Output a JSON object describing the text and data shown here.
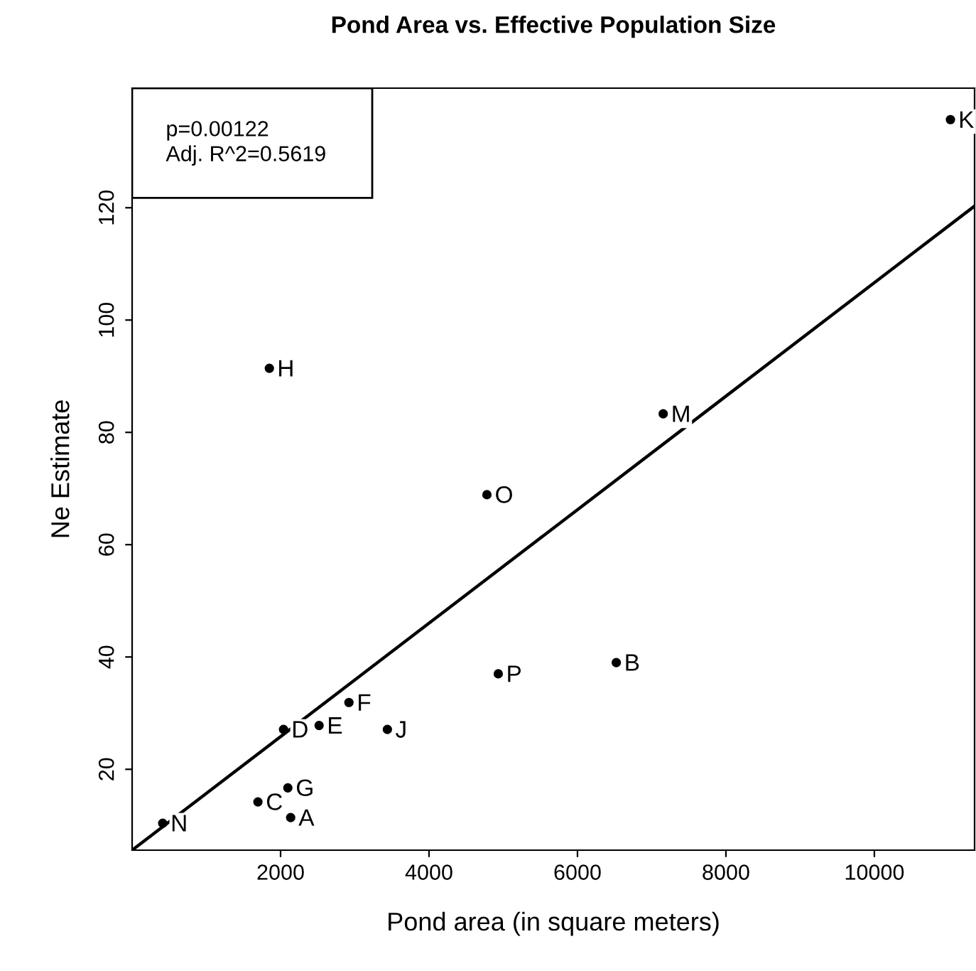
{
  "chart_data": {
    "type": "scatter",
    "title": "Pond Area vs. Effective Population Size",
    "xlabel": "Pond area (in square meters)",
    "ylabel": "Ne Estimate",
    "xlim": [
      0,
      11350
    ],
    "ylim": [
      5.6,
      141.3
    ],
    "xticks": [
      2000,
      4000,
      6000,
      8000,
      10000
    ],
    "yticks": [
      20,
      40,
      60,
      80,
      100,
      120
    ],
    "grid": false,
    "marker": "circle",
    "series": [
      {
        "color": "#000000",
        "x": [
          2136,
          6523,
          1695,
          2040,
          2519,
          2921,
          2098,
          1849,
          3439,
          11025,
          7155,
          412,
          4780,
          4933
        ],
        "values": [
          11.4,
          39.0,
          14.2,
          27.1,
          27.8,
          31.9,
          16.7,
          91.4,
          27.1,
          135.7,
          83.3,
          10.4,
          68.9,
          37.0
        ]
      },
      {
        "type": "line",
        "color": "#000000",
        "marker": "none",
        "line_style": "solid",
        "x": [
          0,
          11350
        ],
        "values": [
          5.6,
          120.3
        ]
      }
    ],
    "annotations": [
      {
        "text": "A",
        "x": 2136,
        "y": 11.4
      },
      {
        "text": "B",
        "x": 6523,
        "y": 39.0
      },
      {
        "text": "C",
        "x": 1695,
        "y": 14.2
      },
      {
        "text": "D",
        "x": 2040,
        "y": 27.1
      },
      {
        "text": "E",
        "x": 2519,
        "y": 27.8
      },
      {
        "text": "F",
        "x": 2921,
        "y": 31.9
      },
      {
        "text": "G",
        "x": 2098,
        "y": 16.7
      },
      {
        "text": "H",
        "x": 1849,
        "y": 91.4
      },
      {
        "text": "J",
        "x": 3439,
        "y": 27.1
      },
      {
        "text": "K",
        "x": 11025,
        "y": 135.7
      },
      {
        "text": "M",
        "x": 7155,
        "y": 83.3
      },
      {
        "text": "N",
        "x": 412,
        "y": 10.4
      },
      {
        "text": "O",
        "x": 4780,
        "y": 68.9
      },
      {
        "text": "P",
        "x": 4933,
        "y": 37.0
      },
      "p=0.00122\nAdj. R^2=0.5619"
    ]
  }
}
